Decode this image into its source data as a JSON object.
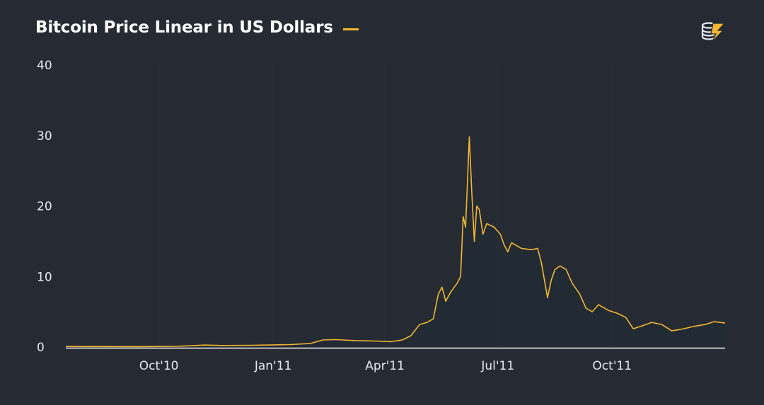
{
  "chart_data": {
    "type": "line",
    "title": "Bitcoin Price Linear in US Dollars",
    "xlabel": "",
    "ylabel": "",
    "ylim": [
      0,
      40
    ],
    "yticks": [
      0,
      10,
      20,
      30,
      40
    ],
    "xlim": [
      "2010-07-18",
      "2011-12-31"
    ],
    "xticks": [
      {
        "date": "2010-10-01",
        "label": "Oct'10"
      },
      {
        "date": "2011-01-01",
        "label": "Jan'11"
      },
      {
        "date": "2011-04-01",
        "label": "Apr'11"
      },
      {
        "date": "2011-07-01",
        "label": "Jul'11"
      },
      {
        "date": "2011-10-01",
        "label": "Oct'11"
      }
    ],
    "grid": {
      "horizontal": false,
      "vertical": true
    },
    "legend": "next-to-title",
    "series": [
      {
        "color": "#f2b632",
        "points": [
          [
            "2010-07-18",
            0.08
          ],
          [
            "2010-08-15",
            0.07
          ],
          [
            "2010-09-15",
            0.06
          ],
          [
            "2010-10-15",
            0.1
          ],
          [
            "2010-11-07",
            0.28
          ],
          [
            "2010-11-20",
            0.22
          ],
          [
            "2010-12-15",
            0.25
          ],
          [
            "2011-01-15",
            0.35
          ],
          [
            "2011-01-31",
            0.5
          ],
          [
            "2011-02-10",
            1.0
          ],
          [
            "2011-02-20",
            1.05
          ],
          [
            "2011-03-10",
            0.9
          ],
          [
            "2011-03-25",
            0.85
          ],
          [
            "2011-04-05",
            0.75
          ],
          [
            "2011-04-15",
            1.0
          ],
          [
            "2011-04-22",
            1.6
          ],
          [
            "2011-04-29",
            3.2
          ],
          [
            "2011-05-05",
            3.5
          ],
          [
            "2011-05-10",
            4.0
          ],
          [
            "2011-05-14",
            7.5
          ],
          [
            "2011-05-17",
            8.5
          ],
          [
            "2011-05-20",
            6.5
          ],
          [
            "2011-05-24",
            7.8
          ],
          [
            "2011-05-29",
            9.0
          ],
          [
            "2011-06-01",
            10.0
          ],
          [
            "2011-06-03",
            18.5
          ],
          [
            "2011-06-05",
            17.0
          ],
          [
            "2011-06-08",
            29.8
          ],
          [
            "2011-06-10",
            22.0
          ],
          [
            "2011-06-12",
            15.0
          ],
          [
            "2011-06-14",
            20.0
          ],
          [
            "2011-06-16",
            19.5
          ],
          [
            "2011-06-19",
            16.0
          ],
          [
            "2011-06-22",
            17.5
          ],
          [
            "2011-06-28",
            17.0
          ],
          [
            "2011-07-03",
            16.0
          ],
          [
            "2011-07-06",
            14.5
          ],
          [
            "2011-07-09",
            13.5
          ],
          [
            "2011-07-12",
            14.8
          ],
          [
            "2011-07-20",
            14.0
          ],
          [
            "2011-07-28",
            13.8
          ],
          [
            "2011-08-02",
            14.0
          ],
          [
            "2011-08-05",
            12.0
          ],
          [
            "2011-08-08",
            9.0
          ],
          [
            "2011-08-10",
            7.0
          ],
          [
            "2011-08-13",
            9.5
          ],
          [
            "2011-08-16",
            11.0
          ],
          [
            "2011-08-20",
            11.5
          ],
          [
            "2011-08-25",
            11.0
          ],
          [
            "2011-08-30",
            9.0
          ],
          [
            "2011-09-05",
            7.5
          ],
          [
            "2011-09-10",
            5.5
          ],
          [
            "2011-09-15",
            5.0
          ],
          [
            "2011-09-20",
            6.0
          ],
          [
            "2011-09-28",
            5.2
          ],
          [
            "2011-10-05",
            4.8
          ],
          [
            "2011-10-12",
            4.2
          ],
          [
            "2011-10-18",
            2.6
          ],
          [
            "2011-10-25",
            3.0
          ],
          [
            "2011-11-02",
            3.5
          ],
          [
            "2011-11-10",
            3.2
          ],
          [
            "2011-11-18",
            2.3
          ],
          [
            "2011-11-25",
            2.5
          ],
          [
            "2011-12-05",
            2.9
          ],
          [
            "2011-12-15",
            3.2
          ],
          [
            "2011-12-22",
            3.6
          ],
          [
            "2011-12-31",
            3.4
          ]
        ]
      }
    ]
  }
}
